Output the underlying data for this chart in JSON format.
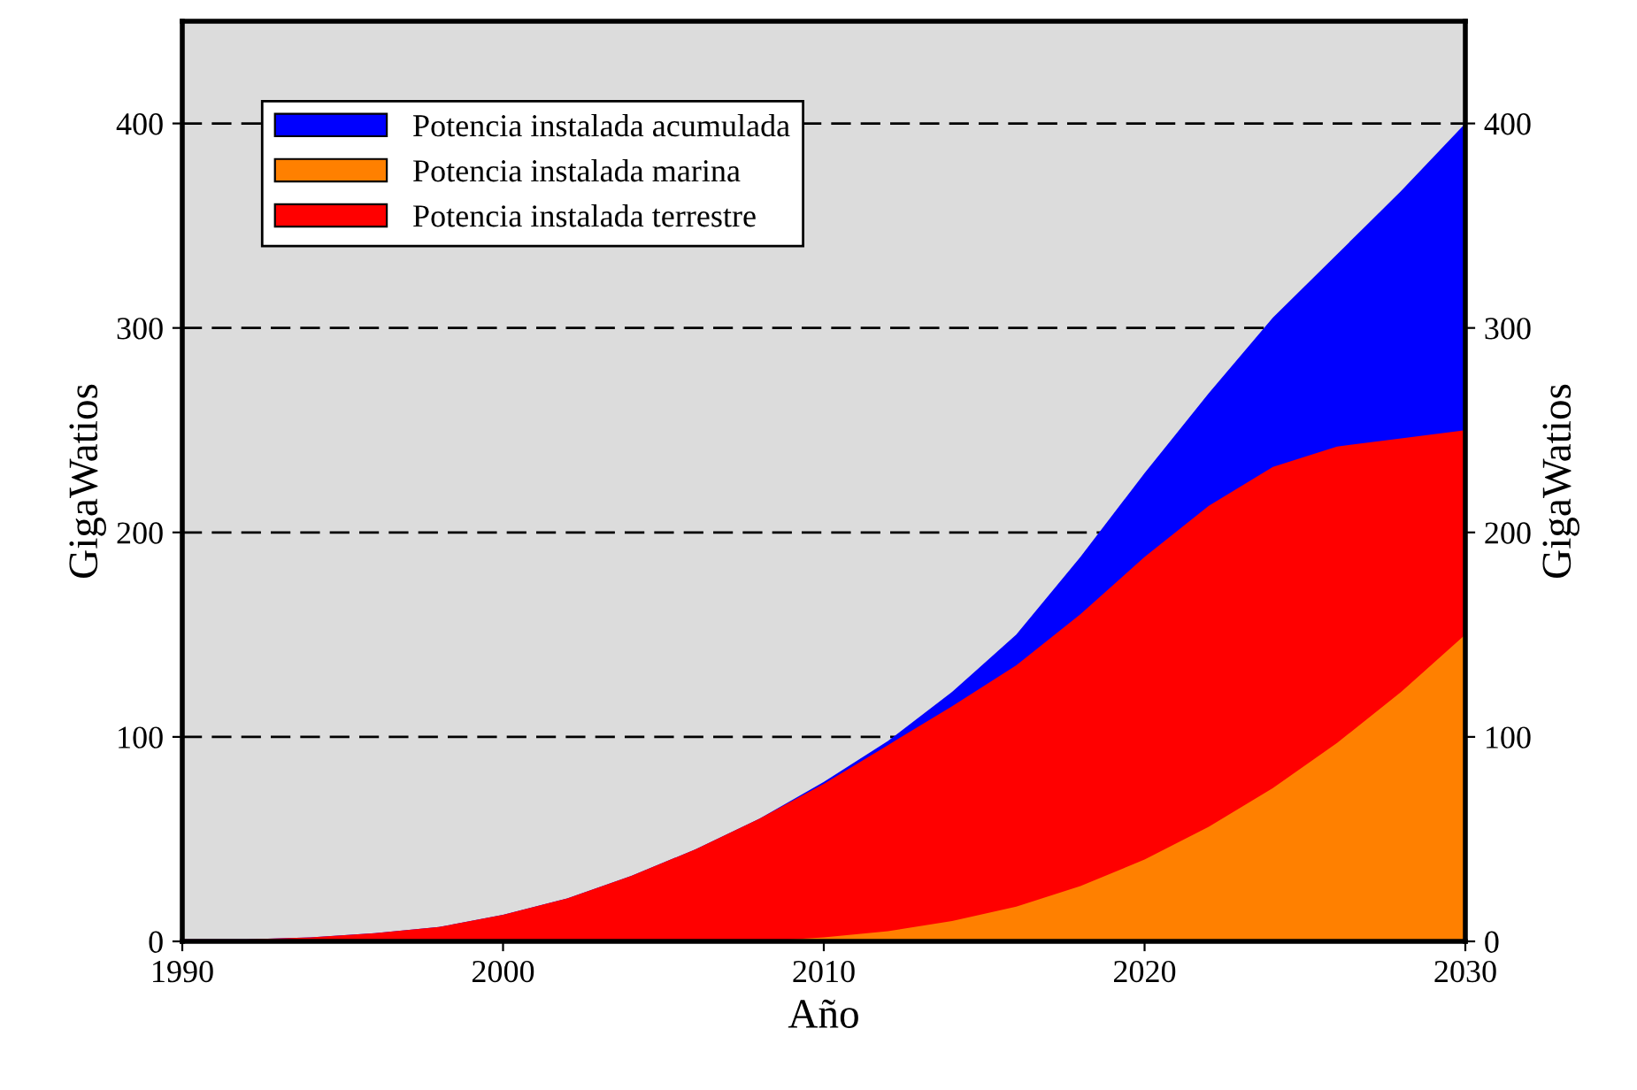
{
  "chart_data": {
    "type": "area",
    "xlabel": "Año",
    "ylabel": "GigaWatios",
    "y2label": "GigaWatios",
    "x": [
      1990,
      1992,
      1994,
      1996,
      1998,
      2000,
      2002,
      2004,
      2006,
      2008,
      2010,
      2012,
      2014,
      2016,
      2018,
      2020,
      2022,
      2024,
      2026,
      2028,
      2030
    ],
    "series": [
      {
        "name": "Potencia instalada acumulada",
        "color": "#0000ff",
        "values": [
          1,
          1,
          2,
          4,
          7,
          13,
          21,
          32,
          45,
          60,
          78,
          98,
          122,
          150,
          188,
          229,
          268,
          305,
          336,
          367,
          400
        ]
      },
      {
        "name": "Potencia instalada marina",
        "color": "#ff8000",
        "values": [
          0,
          0,
          0,
          0,
          0,
          0,
          0,
          0,
          0,
          0,
          2,
          5,
          10,
          17,
          27,
          40,
          56,
          75,
          97,
          122,
          150
        ]
      },
      {
        "name": "Potencia instalada terrestre",
        "color": "#ff0000",
        "values": [
          1,
          1,
          2,
          4,
          7,
          13,
          21,
          32,
          45,
          60,
          77,
          96,
          115,
          135,
          160,
          188,
          213,
          232,
          242,
          246,
          250
        ]
      }
    ],
    "xlim": [
      1990,
      2030
    ],
    "xticks": [
      1990,
      2000,
      2010,
      2020,
      2030
    ],
    "ylim": [
      0,
      450
    ],
    "yticks": [
      0,
      100,
      200,
      300,
      400
    ],
    "y2lim": [
      0,
      450
    ],
    "y2ticks": [
      0,
      100,
      200,
      300,
      400
    ],
    "grid": "y",
    "line_style": "dashed",
    "legend": "top left"
  }
}
